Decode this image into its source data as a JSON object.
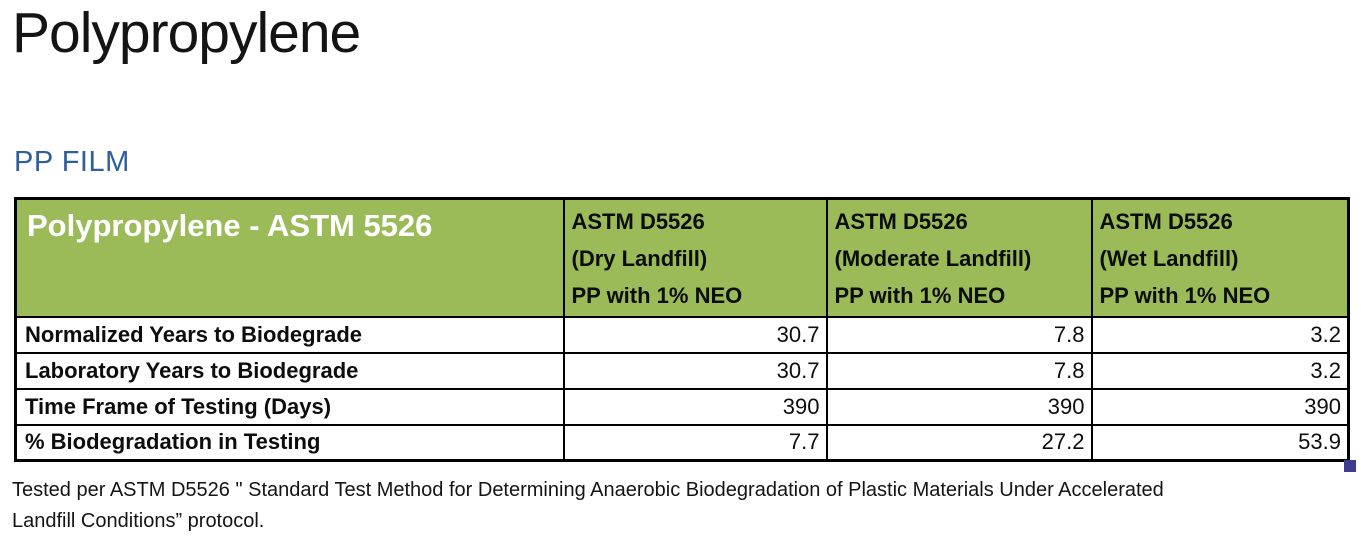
{
  "page": {
    "title": "Polypropylene",
    "subtitle": "PP FILM"
  },
  "table": {
    "title": "Polypropylene - ASTM 5526",
    "columns": [
      {
        "line1": "ASTM D5526",
        "line2": "(Dry Landfill)",
        "line3": "PP with 1% NEO"
      },
      {
        "line1": "ASTM D5526",
        "line2": "(Moderate Landfill)",
        "line3": "PP with 1% NEO"
      },
      {
        "line1": "ASTM D5526",
        "line2": "(Wet Landfill)",
        "line3": "PP with 1% NEO"
      }
    ],
    "rows": [
      {
        "label": "Normalized Years to Biodegrade",
        "values": [
          "30.7",
          "7.8",
          "3.2"
        ]
      },
      {
        "label": "Laboratory Years to Biodegrade",
        "values": [
          "30.7",
          "7.8",
          "3.2"
        ]
      },
      {
        "label": "Time Frame of Testing (Days)",
        "values": [
          "390",
          "390",
          "390"
        ]
      },
      {
        "label": "% Biodegradation in Testing",
        "values": [
          "7.7",
          "27.2",
          "53.9"
        ]
      }
    ]
  },
  "footnote": {
    "line1": "Tested per ASTM D5526 \" Standard Test Method for Determining Anaerobic Biodegradation of Plastic Materials Under Accelerated",
    "line2": "Landfill Conditions” protocol."
  },
  "colors": {
    "table_header_green": "#9BBB59",
    "subtitle_blue": "#2E5E9C",
    "resize_handle_blue": "#3D3D8F",
    "border_black": "#000000"
  },
  "chart_data": {
    "type": "table",
    "title": "Polypropylene - ASTM 5526",
    "categories": [
      "ASTM D5526 (Dry Landfill) PP with 1% NEO",
      "ASTM D5526 (Moderate Landfill) PP with 1% NEO",
      "ASTM D5526 (Wet Landfill) PP with 1% NEO"
    ],
    "series": [
      {
        "name": "Normalized Years to Biodegrade",
        "values": [
          30.7,
          7.8,
          3.2
        ]
      },
      {
        "name": "Laboratory Years to Biodegrade",
        "values": [
          30.7,
          7.8,
          3.2
        ]
      },
      {
        "name": "Time Frame of Testing (Days)",
        "values": [
          390,
          390,
          390
        ]
      },
      {
        "name": "% Biodegradation in Testing",
        "values": [
          7.7,
          27.2,
          53.9
        ]
      }
    ]
  }
}
